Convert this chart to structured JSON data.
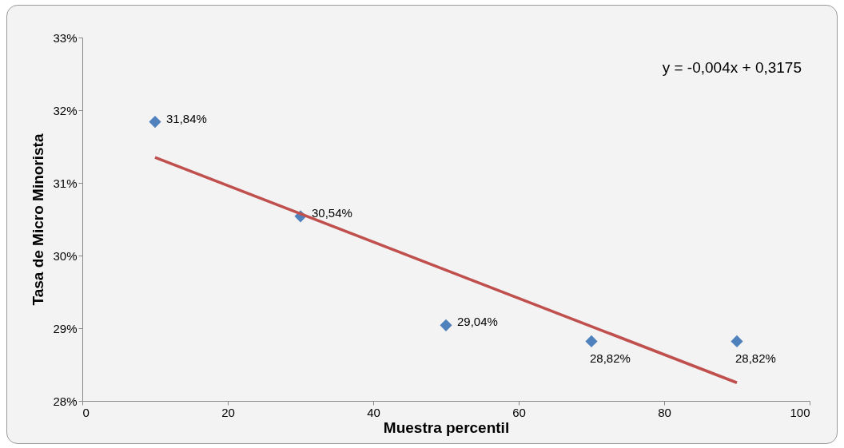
{
  "chart_data": {
    "type": "scatter",
    "xlabel": "Muestra percentil",
    "ylabel": "Tasa de Micro Minorista",
    "annotations": [
      "y = -0,004x + 0,3175"
    ],
    "xlim": [
      0,
      100
    ],
    "xticks": [
      0,
      20,
      40,
      60,
      80,
      100
    ],
    "ylim": [
      28,
      33
    ],
    "yticks": [
      {
        "value": 28,
        "label": "28%"
      },
      {
        "value": 29,
        "label": "29%"
      },
      {
        "value": 30,
        "label": "30%"
      },
      {
        "value": 31,
        "label": "31%"
      },
      {
        "value": 32,
        "label": "32%"
      },
      {
        "value": 33,
        "label": "33%"
      }
    ],
    "series": [
      {
        "marker": "diamond",
        "color": "#4f81bd",
        "x": [
          10,
          30,
          50,
          70,
          90
        ],
        "values": [
          31.84,
          30.54,
          29.04,
          28.82,
          28.82
        ],
        "value_labels": [
          "31,84%",
          "30,54%",
          "29,04%",
          "28,82%",
          "28,82%"
        ]
      },
      {
        "type": "line",
        "color": "#c0504d",
        "x": [
          10,
          90
        ],
        "values": [
          31.35,
          28.25
        ]
      }
    ]
  }
}
